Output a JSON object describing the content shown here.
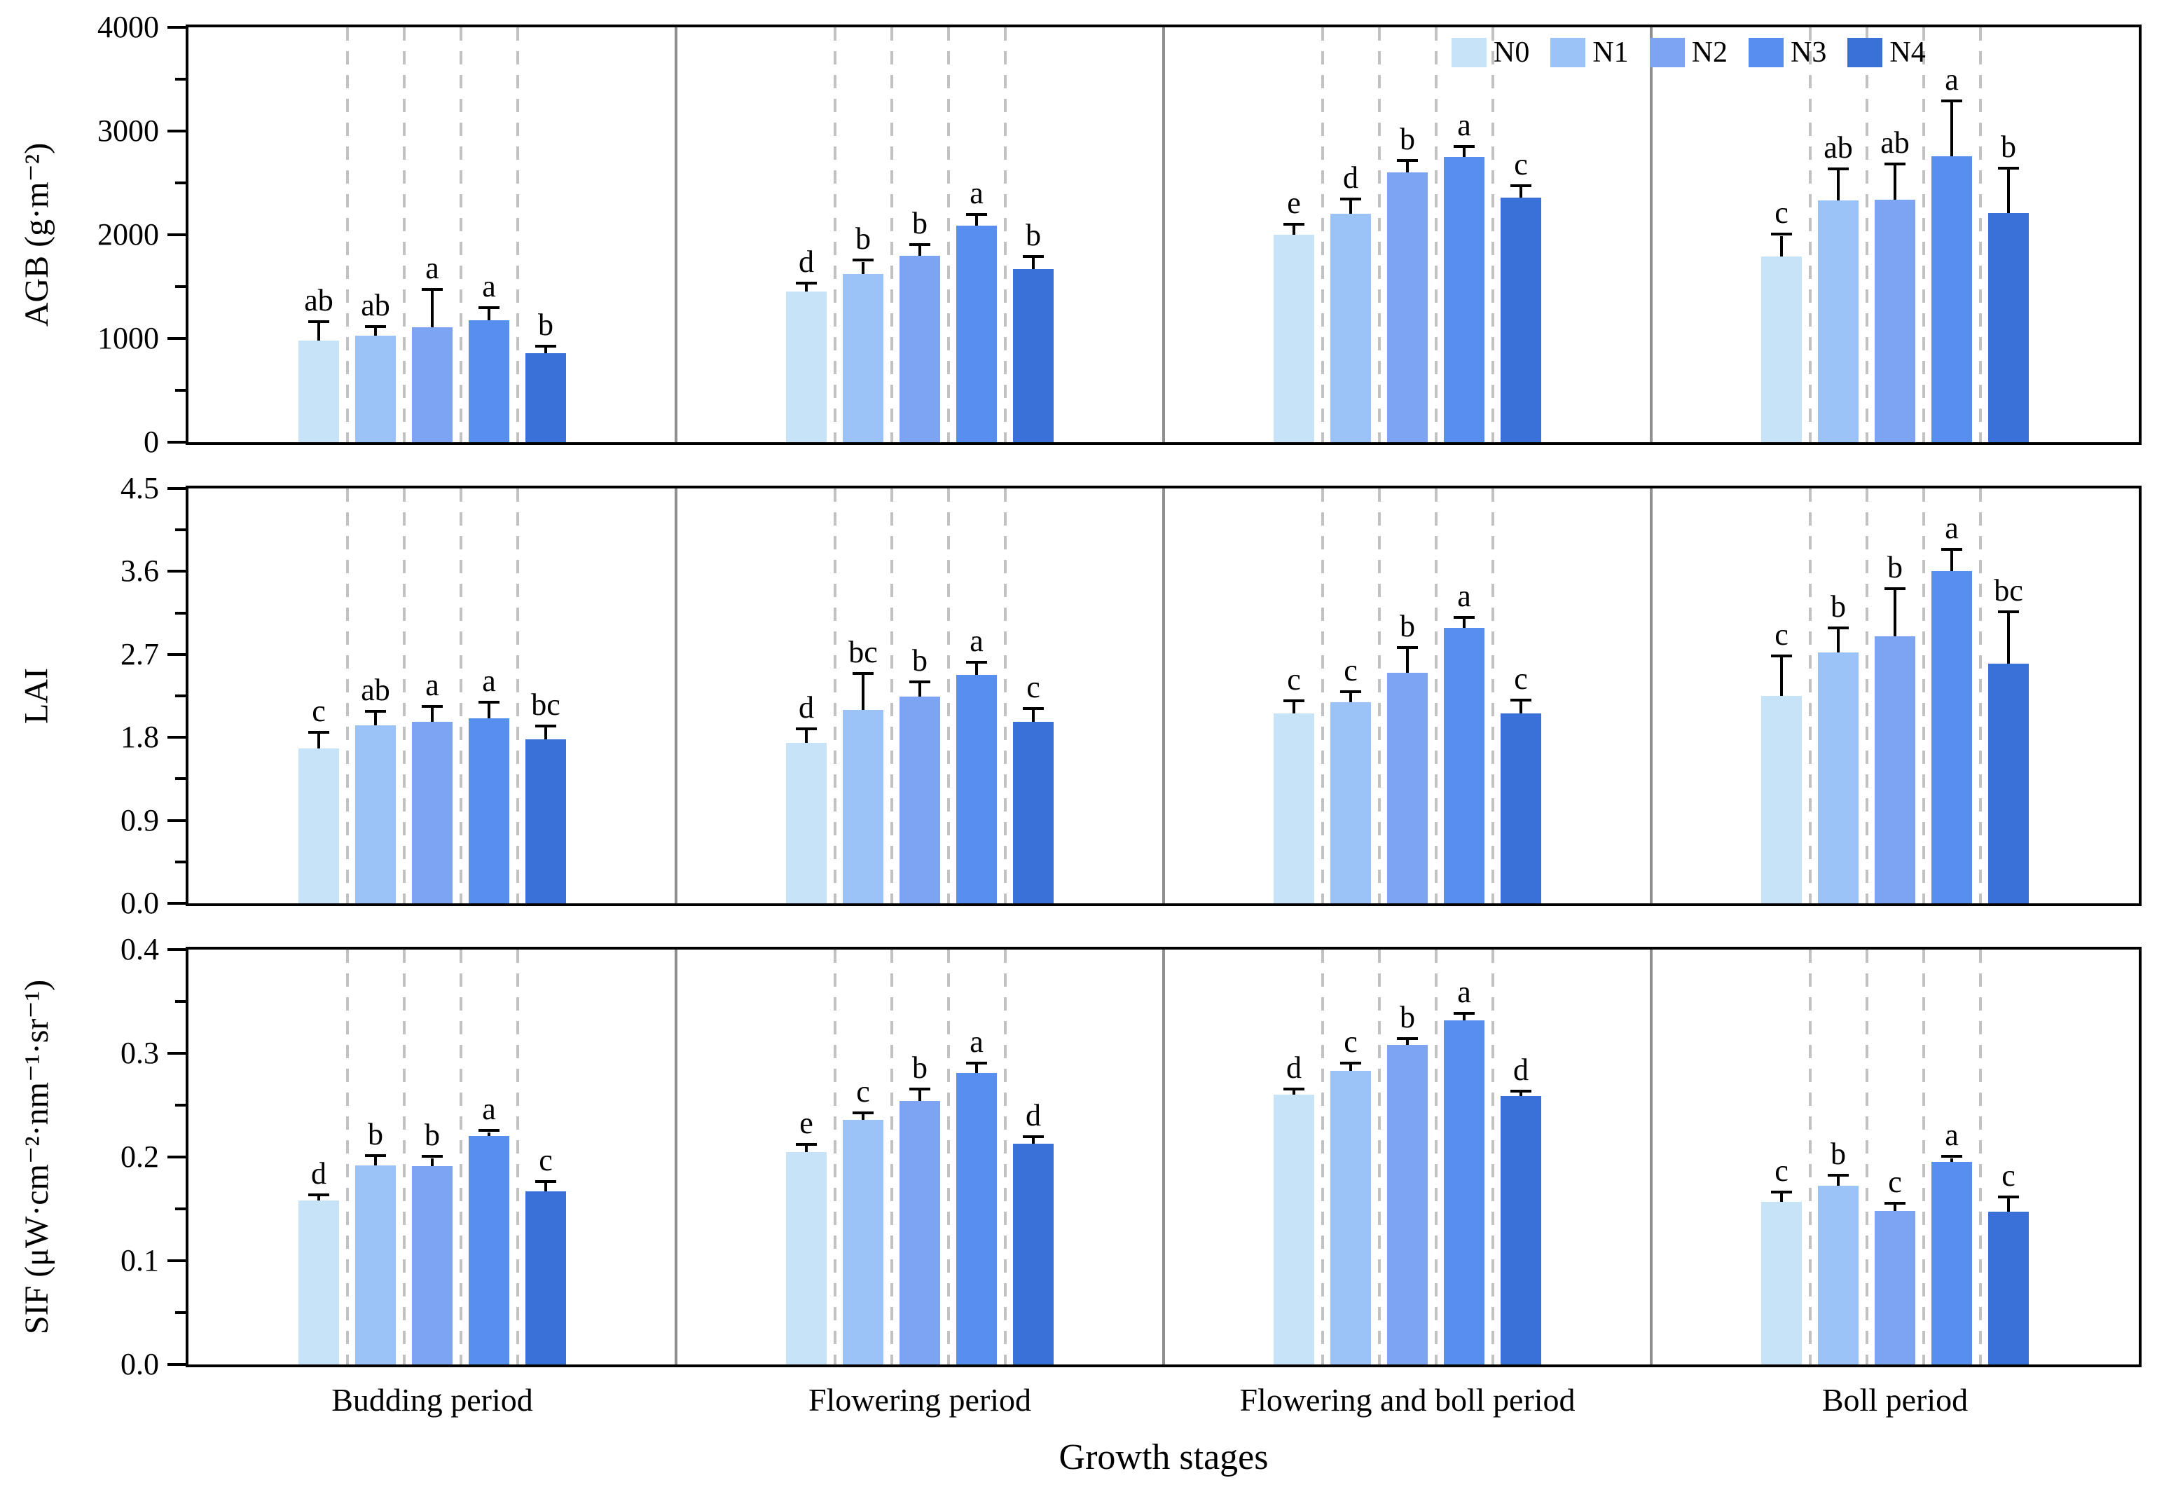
{
  "figure": {
    "xlabel": "Growth stages",
    "group_labels": [
      "Budding period",
      "Flowering period",
      "Flowering and boll period",
      "Boll period"
    ],
    "legend": {
      "labels": [
        "N0",
        "N1",
        "N2",
        "N3",
        "N4"
      ],
      "colors": [
        "#C6E3F7",
        "#9CC3F7",
        "#7CA4F2",
        "#588EEF",
        "#3A71D8"
      ],
      "position": "top-right-inside-first-panel"
    },
    "styles": {
      "dash_line_color": "#C2C2C2",
      "group_separator_color": "#8F8F8F",
      "error_bar_color": "#000000"
    }
  },
  "chart_data": [
    {
      "type": "bar",
      "id": "agb",
      "ylabel": "AGB (g·m⁻²)",
      "ylim": [
        0,
        4000
      ],
      "ytick_labels": [
        "0",
        "1000",
        "2000",
        "3000",
        "4000"
      ],
      "ytick_values": [
        0,
        1000,
        2000,
        3000,
        4000
      ],
      "minor_tick_values": [
        500,
        1500,
        2500,
        3500
      ],
      "grid": false,
      "categories": [
        "Budding period",
        "Flowering period",
        "Flowering and boll period",
        "Boll period"
      ],
      "series": [
        {
          "name": "N0",
          "values": [
            980,
            1450,
            2000,
            1790
          ],
          "errors": [
            170,
            70,
            90,
            200
          ],
          "letters": [
            "ab",
            "d",
            "e",
            "c"
          ]
        },
        {
          "name": "N1",
          "values": [
            1030,
            1620,
            2200,
            2330
          ],
          "errors": [
            70,
            120,
            130,
            290
          ],
          "letters": [
            "ab",
            "b",
            "d",
            "ab"
          ]
        },
        {
          "name": "N2",
          "values": [
            1110,
            1800,
            2600,
            2340
          ],
          "errors": [
            350,
            95,
            100,
            330
          ],
          "letters": [
            "a",
            "b",
            "b",
            "ab"
          ]
        },
        {
          "name": "N3",
          "values": [
            1175,
            2090,
            2750,
            2760
          ],
          "errors": [
            110,
            90,
            90,
            520
          ],
          "letters": [
            "a",
            "a",
            "a",
            "a"
          ]
        },
        {
          "name": "N4",
          "values": [
            855,
            1670,
            2360,
            2210
          ],
          "errors": [
            60,
            110,
            100,
            420
          ],
          "letters": [
            "b",
            "b",
            "c",
            "b"
          ]
        }
      ]
    },
    {
      "type": "bar",
      "id": "lai",
      "ylabel": "LAI",
      "ylim": [
        0,
        4.5
      ],
      "ytick_labels": [
        "0.0",
        "0.9",
        "1.8",
        "2.7",
        "3.6",
        "4.5"
      ],
      "ytick_values": [
        0,
        0.9,
        1.8,
        2.7,
        3.6,
        4.5
      ],
      "minor_tick_values": [
        0.45,
        1.35,
        2.25,
        3.15,
        4.05
      ],
      "grid": false,
      "categories": [
        "Budding period",
        "Flowering period",
        "Flowering and boll period",
        "Boll period"
      ],
      "series": [
        {
          "name": "N0",
          "values": [
            1.68,
            1.74,
            2.06,
            2.25
          ],
          "errors": [
            0.16,
            0.14,
            0.12,
            0.42
          ],
          "letters": [
            "c",
            "d",
            "c",
            "c"
          ]
        },
        {
          "name": "N1",
          "values": [
            1.93,
            2.1,
            2.18,
            2.72
          ],
          "errors": [
            0.14,
            0.38,
            0.1,
            0.25
          ],
          "letters": [
            "ab",
            "bc",
            "c",
            "b"
          ]
        },
        {
          "name": "N2",
          "values": [
            1.97,
            2.24,
            2.5,
            2.9
          ],
          "errors": [
            0.15,
            0.15,
            0.26,
            0.5
          ],
          "letters": [
            "a",
            "b",
            "b",
            "b"
          ]
        },
        {
          "name": "N3",
          "values": [
            2.01,
            2.48,
            2.99,
            3.6
          ],
          "errors": [
            0.16,
            0.12,
            0.1,
            0.22
          ],
          "letters": [
            "a",
            "a",
            "a",
            "a"
          ]
        },
        {
          "name": "N4",
          "values": [
            1.78,
            1.97,
            2.06,
            2.6
          ],
          "errors": [
            0.13,
            0.13,
            0.13,
            0.55
          ],
          "letters": [
            "bc",
            "c",
            "c",
            "bc"
          ]
        }
      ]
    },
    {
      "type": "bar",
      "id": "sif",
      "ylabel": "SIF (μW·cm⁻²·nm⁻¹·sr⁻¹)",
      "ylim": [
        0,
        0.4
      ],
      "ytick_labels": [
        "0.0",
        "0.1",
        "0.2",
        "0.3",
        "0.4"
      ],
      "ytick_values": [
        0,
        0.1,
        0.2,
        0.3,
        0.4
      ],
      "minor_tick_values": [
        0.05,
        0.15,
        0.25,
        0.35
      ],
      "grid": false,
      "categories": [
        "Budding period",
        "Flowering period",
        "Flowering and boll period",
        "Boll period"
      ],
      "series": [
        {
          "name": "N0",
          "values": [
            0.158,
            0.205,
            0.26,
            0.157
          ],
          "errors": [
            0.004,
            0.006,
            0.004,
            0.008
          ],
          "letters": [
            "d",
            "e",
            "d",
            "c"
          ]
        },
        {
          "name": "N1",
          "values": [
            0.192,
            0.236,
            0.283,
            0.172
          ],
          "errors": [
            0.008,
            0.005,
            0.006,
            0.009
          ],
          "letters": [
            "b",
            "c",
            "c",
            "b"
          ]
        },
        {
          "name": "N2",
          "values": [
            0.191,
            0.254,
            0.308,
            0.148
          ],
          "errors": [
            0.008,
            0.01,
            0.005,
            0.006
          ],
          "letters": [
            "b",
            "b",
            "b",
            "c"
          ]
        },
        {
          "name": "N3",
          "values": [
            0.22,
            0.281,
            0.332,
            0.195
          ],
          "errors": [
            0.004,
            0.008,
            0.005,
            0.004
          ],
          "letters": [
            "a",
            "a",
            "a",
            "a"
          ]
        },
        {
          "name": "N4",
          "values": [
            0.167,
            0.213,
            0.259,
            0.147
          ],
          "errors": [
            0.008,
            0.005,
            0.003,
            0.013
          ],
          "letters": [
            "c",
            "d",
            "d",
            "c"
          ]
        }
      ]
    }
  ]
}
